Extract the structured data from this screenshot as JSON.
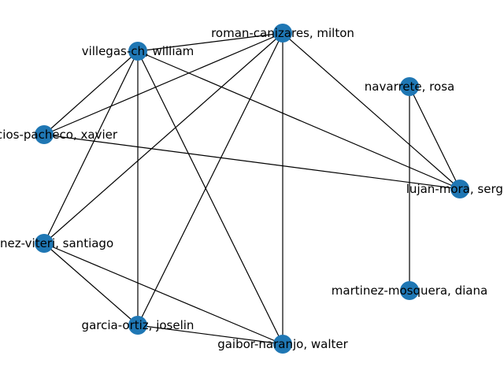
{
  "graph": {
    "node_color": "#1f77b4",
    "edge_color": "#000000",
    "nodes": [
      {
        "id": "roman",
        "label": "roman-canizares, milton"
      },
      {
        "id": "villegas",
        "label": "villegas-ch, william"
      },
      {
        "id": "navarrete",
        "label": "navarrete, rosa"
      },
      {
        "id": "palacios",
        "label": "palacios-pacheco, xavier"
      },
      {
        "id": "lujan",
        "label": "lujan-mora, sergio"
      },
      {
        "id": "jimenez",
        "label": "jimenez-viteri, santiago"
      },
      {
        "id": "martinez",
        "label": "martinez-mosquera, diana"
      },
      {
        "id": "garcia",
        "label": "garcia-ortiz, joselin"
      },
      {
        "id": "gaibor",
        "label": "gaibor-naranjo, walter"
      }
    ],
    "edges": [
      [
        "roman",
        "villegas"
      ],
      [
        "roman",
        "palacios"
      ],
      [
        "roman",
        "jimenez"
      ],
      [
        "roman",
        "garcia"
      ],
      [
        "roman",
        "gaibor"
      ],
      [
        "roman",
        "lujan"
      ],
      [
        "villegas",
        "palacios"
      ],
      [
        "villegas",
        "jimenez"
      ],
      [
        "villegas",
        "garcia"
      ],
      [
        "villegas",
        "gaibor"
      ],
      [
        "villegas",
        "lujan"
      ],
      [
        "palacios",
        "lujan"
      ],
      [
        "jimenez",
        "garcia"
      ],
      [
        "jimenez",
        "gaibor"
      ],
      [
        "garcia",
        "gaibor"
      ],
      [
        "navarrete",
        "lujan"
      ],
      [
        "navarrete",
        "martinez"
      ]
    ]
  }
}
